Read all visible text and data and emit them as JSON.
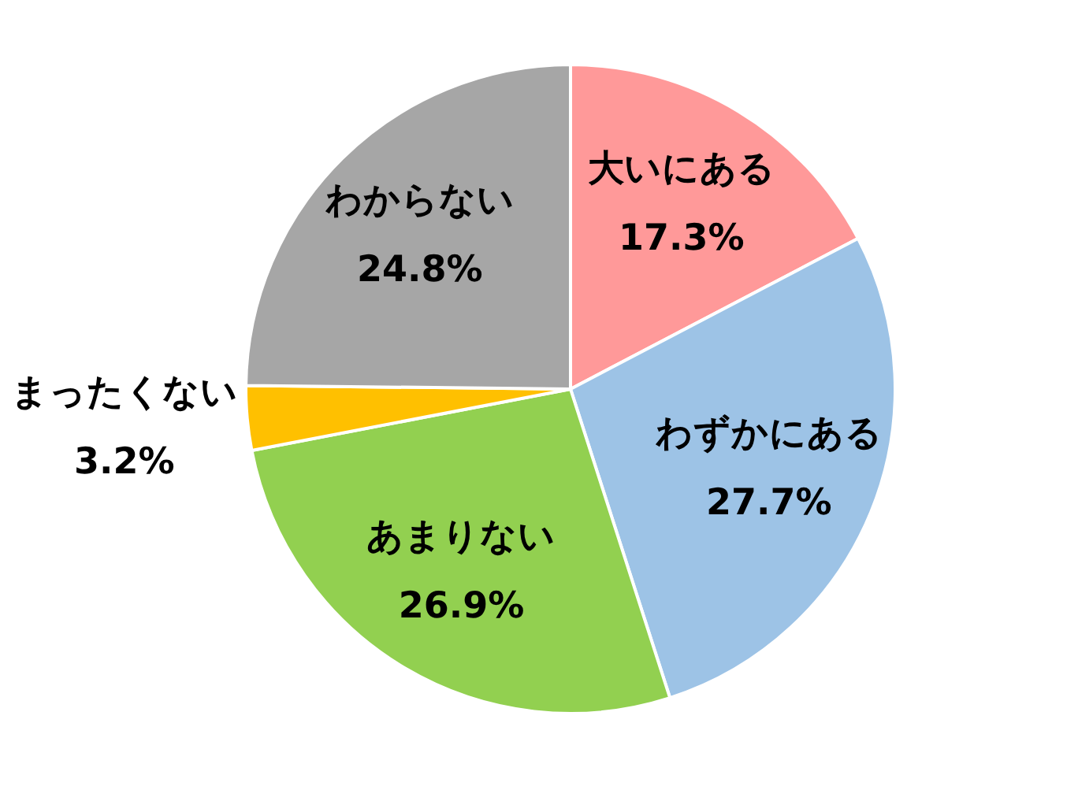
{
  "chart_data": {
    "type": "pie",
    "categories": [
      "大いにある",
      "わずかにある",
      "あまりない",
      "まったくない",
      "わからない"
    ],
    "values": [
      17.3,
      27.7,
      26.9,
      3.2,
      24.8
    ],
    "value_labels": [
      "17.3%",
      "27.7%",
      "26.9%",
      "3.2%",
      "24.8%"
    ],
    "colors": [
      "#ff9999",
      "#9dc3e6",
      "#92d050",
      "#ffc000",
      "#a6a6a6"
    ],
    "legend": false
  }
}
